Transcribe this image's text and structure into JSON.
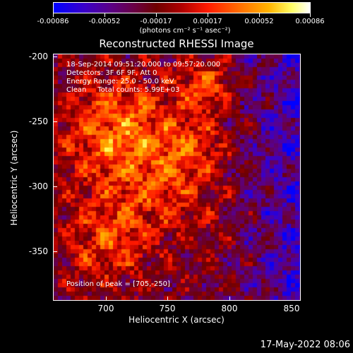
{
  "colorbar": {
    "ticks": [
      "-0.00086",
      "-0.00052",
      "-0.00017",
      "0.00017",
      "0.00052",
      "0.00086"
    ],
    "units": "(photons cm⁻² s⁻¹ asec⁻²)"
  },
  "chart_data": {
    "type": "heatmap",
    "title": "Reconstructed RHESSI Image",
    "xlabel": "Heliocentric X (arcsec)",
    "ylabel": "Heliocentric Y (arcsec)",
    "x_ticks": [
      "700",
      "750",
      "800",
      "850"
    ],
    "y_ticks": [
      "-200",
      "-250",
      "-300",
      "-350"
    ],
    "xlim": [
      662,
      850
    ],
    "ylim": [
      -386,
      -198
    ],
    "colorbar_range": [
      -0.00086,
      0.00086
    ],
    "colormap": "blue-purple-red-orange-yellow-white",
    "annotations": [
      "18-Sep-2014 09:51:20.000 to 09:57:20.000",
      "Detectors: 3F 6F 9F, Att 0",
      "Energy Range: 25.0 - 50.0 keV",
      "Clean     Total counts: 5.99E+03",
      "Position of peak = [705,-250]"
    ]
  },
  "footer": {
    "timestamp": "17-May-2022 08:06"
  },
  "colors": {
    "background": "#000000",
    "foreground": "#ffffff"
  }
}
